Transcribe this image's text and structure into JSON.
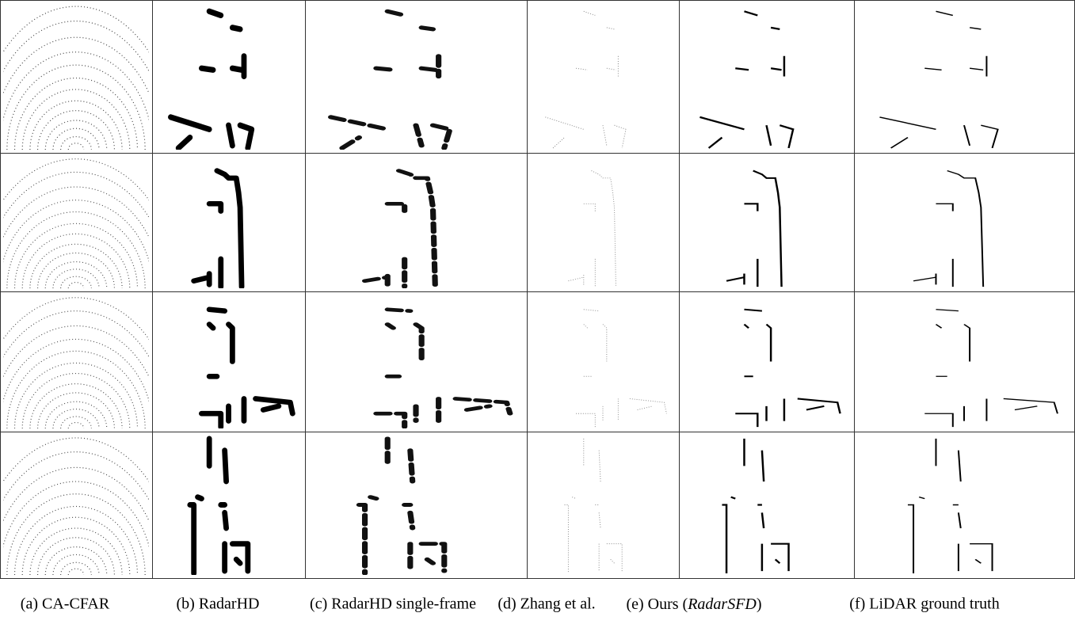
{
  "figure": {
    "captions": [
      "(a) CA-CFAR",
      "(b) RadarHD",
      "(c) RadarHD single-frame",
      "(d) Zhang et al.",
      [
        "(e) Ours (",
        "RadarSFD",
        ")"
      ],
      "(f) LiDAR ground truth"
    ]
  }
}
